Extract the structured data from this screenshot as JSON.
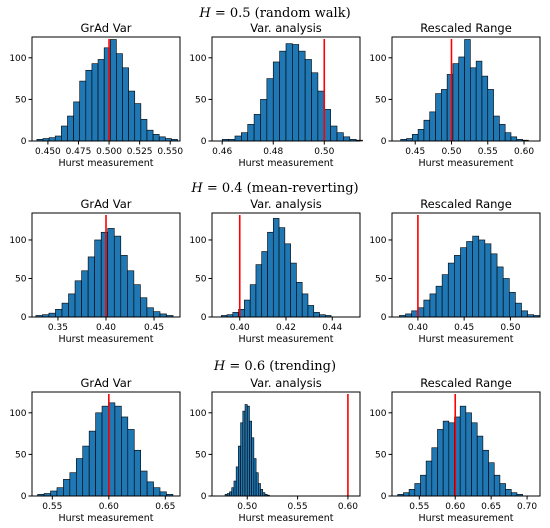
{
  "colors": {
    "bar": "#1f77b4",
    "reference": "#ff0000"
  },
  "rows": [
    {
      "h_symbol": "H",
      "title": " = 0.5 (random walk)"
    },
    {
      "h_symbol": "H",
      "title": " = 0.4 (mean-reverting)"
    },
    {
      "h_symbol": "H",
      "title": " = 0.6 (trending)"
    }
  ],
  "chart_data": [
    {
      "type": "bar",
      "title": "GrAd Var",
      "xlabel": "Hurst measurement",
      "ylabel": "",
      "xlim": [
        0.437,
        0.558
      ],
      "ylim": [
        0,
        125
      ],
      "x_ticks": [
        0.45,
        0.475,
        0.5,
        0.525,
        0.55
      ],
      "x_tick_labels": [
        "0.450",
        "0.475",
        "0.500",
        "0.525",
        "0.550"
      ],
      "y_ticks": [
        0,
        50,
        100
      ],
      "y_tick_labels": [
        "0",
        "50",
        "100"
      ],
      "reference_line": 0.5,
      "bin_start": 0.441,
      "bin_width": 0.005,
      "values": [
        2,
        3,
        4,
        6,
        18,
        30,
        47,
        72,
        85,
        93,
        98,
        112,
        122,
        105,
        88,
        60,
        45,
        26,
        13,
        8,
        5,
        3,
        2
      ]
    },
    {
      "type": "bar",
      "title": "Var. analysis",
      "xlabel": "Hurst measurement",
      "ylabel": "",
      "xlim": [
        0.456,
        0.514
      ],
      "ylim": [
        0,
        125
      ],
      "x_ticks": [
        0.46,
        0.48,
        0.5
      ],
      "x_tick_labels": [
        "0.46",
        "0.48",
        "0.50"
      ],
      "y_ticks": [
        0,
        50,
        100
      ],
      "y_tick_labels": [
        "0",
        "50",
        "100"
      ],
      "reference_line": 0.5,
      "bin_start": 0.46,
      "bin_width": 0.0025,
      "values": [
        2,
        2,
        6,
        10,
        20,
        32,
        50,
        75,
        95,
        108,
        117,
        116,
        108,
        98,
        82,
        60,
        38,
        18,
        10,
        5,
        2,
        1
      ]
    },
    {
      "type": "bar",
      "title": "Rescaled Range",
      "xlabel": "Hurst measurement",
      "ylabel": "",
      "xlim": [
        0.418,
        0.622
      ],
      "ylim": [
        0,
        125
      ],
      "x_ticks": [
        0.45,
        0.5,
        0.55,
        0.6
      ],
      "x_tick_labels": [
        "0.45",
        "0.50",
        "0.55",
        "0.60"
      ],
      "y_ticks": [
        0,
        50,
        100
      ],
      "y_tick_labels": [
        "0",
        "50",
        "100"
      ],
      "reference_line": 0.5,
      "bin_start": 0.43,
      "bin_width": 0.008,
      "values": [
        2,
        3,
        8,
        14,
        25,
        35,
        57,
        62,
        80,
        93,
        101,
        122,
        88,
        96,
        78,
        62,
        30,
        20,
        10,
        5,
        2,
        1
      ]
    },
    {
      "type": "bar",
      "title": "GrAd Var",
      "xlabel": "Hurst measurement",
      "ylabel": "",
      "xlim": [
        0.323,
        0.477
      ],
      "ylim": [
        0,
        135
      ],
      "x_ticks": [
        0.35,
        0.4,
        0.45
      ],
      "x_tick_labels": [
        "0.35",
        "0.40",
        "0.45"
      ],
      "y_ticks": [
        0,
        50,
        100
      ],
      "y_tick_labels": [
        "0",
        "50",
        "100"
      ],
      "reference_line": 0.4,
      "bin_start": 0.327,
      "bin_width": 0.0068,
      "values": [
        2,
        3,
        5,
        10,
        18,
        30,
        47,
        60,
        78,
        100,
        110,
        115,
        105,
        80,
        60,
        42,
        25,
        12,
        7,
        4,
        2
      ]
    },
    {
      "type": "bar",
      "title": "Var. analysis",
      "xlabel": "Hurst measurement",
      "ylabel": "",
      "xlim": [
        0.388,
        0.452
      ],
      "ylim": [
        0,
        135
      ],
      "x_ticks": [
        0.4,
        0.42,
        0.44
      ],
      "x_tick_labels": [
        "0.40",
        "0.42",
        "0.44"
      ],
      "y_ticks": [
        0,
        50,
        100
      ],
      "y_tick_labels": [
        "0",
        "50",
        "100"
      ],
      "reference_line": 0.4,
      "bin_start": 0.392,
      "bin_width": 0.0025,
      "values": [
        2,
        3,
        6,
        10,
        22,
        42,
        68,
        85,
        110,
        128,
        116,
        95,
        70,
        45,
        30,
        15,
        6,
        3,
        2
      ]
    },
    {
      "type": "bar",
      "title": "Rescaled Range",
      "xlabel": "Hurst measurement",
      "ylabel": "",
      "xlim": [
        0.372,
        0.532
      ],
      "ylim": [
        0,
        135
      ],
      "x_ticks": [
        0.4,
        0.45,
        0.5
      ],
      "x_tick_labels": [
        "0.40",
        "0.45",
        "0.50"
      ],
      "y_ticks": [
        0,
        50,
        100
      ],
      "y_tick_labels": [
        "0",
        "50",
        "100"
      ],
      "reference_line": 0.4,
      "bin_start": 0.38,
      "bin_width": 0.0066,
      "values": [
        2,
        4,
        8,
        12,
        22,
        30,
        40,
        55,
        70,
        80,
        90,
        98,
        105,
        100,
        95,
        82,
        65,
        50,
        32,
        18,
        8,
        3,
        2
      ]
    },
    {
      "type": "bar",
      "title": "GrAd Var",
      "xlabel": "Hurst measurement",
      "ylabel": "",
      "xlim": [
        0.532,
        0.663
      ],
      "ylim": [
        0,
        125
      ],
      "x_ticks": [
        0.55,
        0.6,
        0.65
      ],
      "x_tick_labels": [
        "0.55",
        "0.60",
        "0.65"
      ],
      "y_ticks": [
        0,
        50,
        100
      ],
      "y_tick_labels": [
        "0",
        "50",
        "100"
      ],
      "reference_line": 0.6,
      "bin_start": 0.537,
      "bin_width": 0.0057,
      "values": [
        2,
        3,
        6,
        10,
        20,
        28,
        45,
        60,
        78,
        100,
        108,
        112,
        108,
        95,
        80,
        55,
        30,
        17,
        10,
        5,
        2
      ]
    },
    {
      "type": "bar",
      "title": "Var. analysis",
      "xlabel": "Hurst measurement",
      "ylabel": "",
      "xlim": [
        0.465,
        0.612
      ],
      "ylim": [
        0,
        125
      ],
      "x_ticks": [
        0.5,
        0.55,
        0.6
      ],
      "x_tick_labels": [
        "0.50",
        "0.55",
        "0.60"
      ],
      "y_ticks": [
        0,
        50,
        100
      ],
      "y_tick_labels": [
        "0",
        "50",
        "100"
      ],
      "reference_line": 0.6,
      "bin_start": 0.478,
      "bin_width": 0.0022,
      "values": [
        2,
        3,
        5,
        10,
        18,
        35,
        60,
        88,
        102,
        110,
        108,
        90,
        70,
        45,
        28,
        15,
        8,
        4,
        2,
        1
      ]
    },
    {
      "type": "bar",
      "title": "Rescaled Range",
      "xlabel": "Hurst measurement",
      "ylabel": "",
      "xlim": [
        0.512,
        0.718
      ],
      "ylim": [
        0,
        125
      ],
      "x_ticks": [
        0.55,
        0.6,
        0.65,
        0.7
      ],
      "x_tick_labels": [
        "0.55",
        "0.60",
        "0.65",
        "0.70"
      ],
      "y_ticks": [
        0,
        50,
        100
      ],
      "y_tick_labels": [
        "0",
        "50",
        "100"
      ],
      "reference_line": 0.6,
      "bin_start": 0.52,
      "bin_width": 0.0079,
      "values": [
        2,
        4,
        8,
        15,
        25,
        42,
        58,
        80,
        90,
        88,
        95,
        108,
        100,
        88,
        72,
        55,
        40,
        25,
        15,
        8,
        4,
        2
      ]
    }
  ]
}
